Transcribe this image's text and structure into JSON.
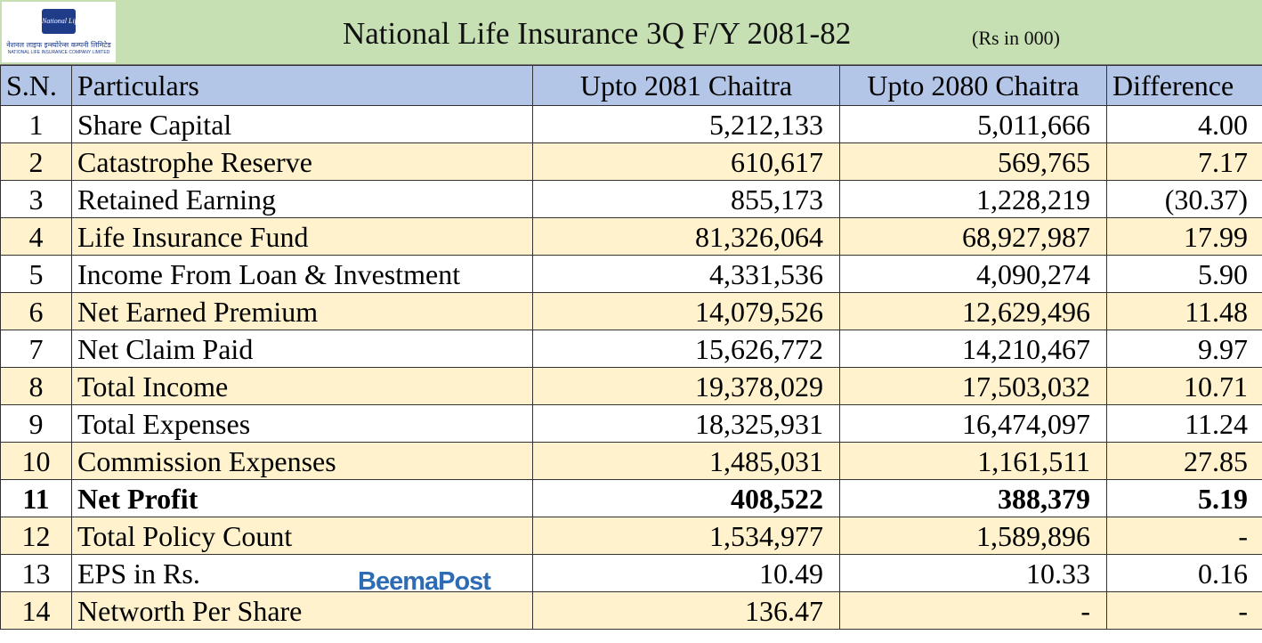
{
  "logo": {
    "brand": "National Life",
    "nepali": "नेशनल लाइफ इन्स्योरेन्स कम्पनी लिमिटेड",
    "english": "NATIONAL LIFE INSURANCE COMPANY LIMITED"
  },
  "header": {
    "title": "National Life Insurance 3Q F/Y 2081-82",
    "unit": "(Rs in 000)"
  },
  "watermark": "BeemaPost",
  "table": {
    "columns": [
      "S.N.",
      "Particulars",
      "Upto 2081 Chaitra",
      "Upto 2080 Chaitra",
      "Difference"
    ],
    "rows": [
      [
        "1",
        "Share Capital",
        "5,212,133",
        "5,011,666",
        "4.00"
      ],
      [
        "2",
        "Catastrophe Reserve",
        "610,617",
        "569,765",
        "7.17"
      ],
      [
        "3",
        "Retained Earning",
        "855,173",
        "1,228,219",
        "(30.37)"
      ],
      [
        "4",
        "Life Insurance Fund",
        "81,326,064",
        "68,927,987",
        "17.99"
      ],
      [
        "5",
        "Income From Loan & Investment",
        "4,331,536",
        "4,090,274",
        "5.90"
      ],
      [
        "6",
        "Net Earned Premium",
        "14,079,526",
        "12,629,496",
        "11.48"
      ],
      [
        "7",
        "Net Claim Paid",
        "15,626,772",
        "14,210,467",
        "9.97"
      ],
      [
        "8",
        "Total Income",
        "19,378,029",
        "17,503,032",
        "10.71"
      ],
      [
        "9",
        "Total Expenses",
        "18,325,931",
        "16,474,097",
        "11.24"
      ],
      [
        "10",
        "Commission Expenses",
        "1,485,031",
        "1,161,511",
        "27.85"
      ],
      [
        "11",
        "Net Profit",
        "408,522",
        "388,379",
        "5.19"
      ],
      [
        "12",
        "Total Policy Count",
        "1,534,977",
        "1,589,896",
        "-"
      ],
      [
        "13",
        "EPS in Rs.",
        "10.49",
        "10.33",
        "0.16"
      ],
      [
        "14",
        "Networth Per Share",
        "136.47",
        "-",
        "-"
      ]
    ]
  }
}
